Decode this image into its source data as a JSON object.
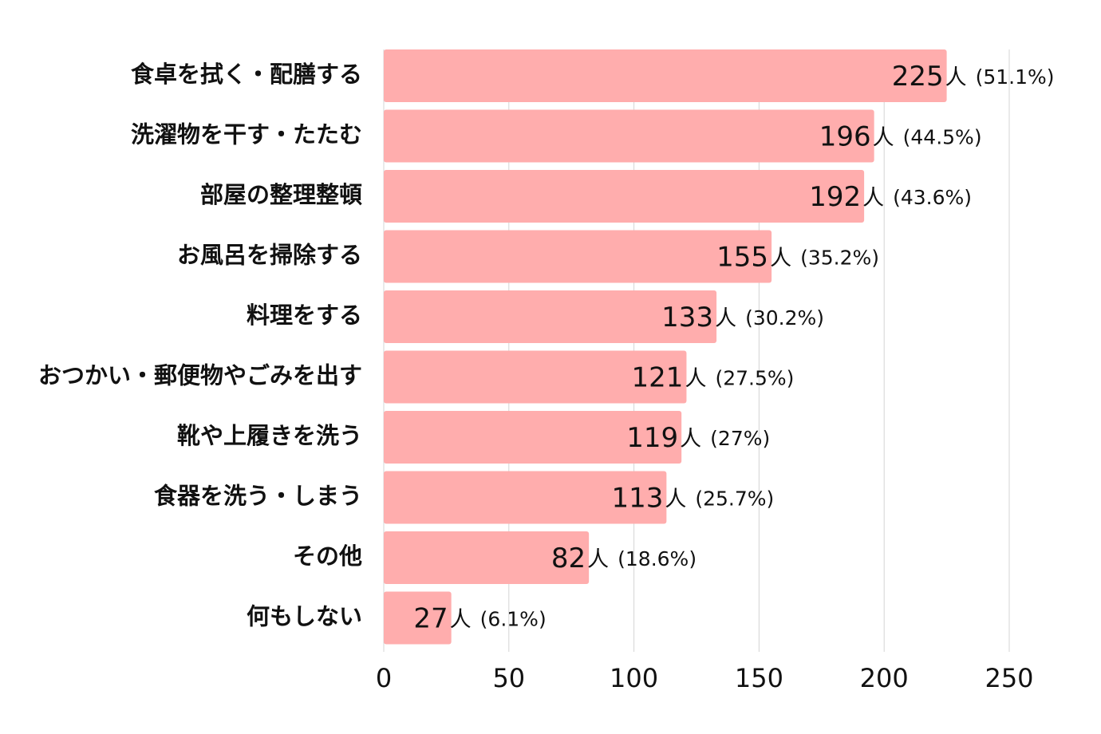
{
  "chart_data": {
    "type": "bar",
    "orientation": "horizontal",
    "categories": [
      "食卓を拭く・配膳する",
      "洗濯物を干す・たたむ",
      "部屋の整理整頓",
      "お風呂を掃除する",
      "料理をする",
      "おつかい・郵便物やごみを出す",
      "靴や上履きを洗う",
      "食器を洗う・しまう",
      "その他",
      "何もしない"
    ],
    "values": [
      225,
      196,
      192,
      155,
      133,
      121,
      119,
      113,
      82,
      27
    ],
    "percent_labels": [
      "(51.1%)",
      "(44.5%)",
      "(43.6%)",
      "(35.2%)",
      "(30.2%)",
      "(27.5%)",
      "(27%)",
      "(25.7%)",
      "(18.6%)",
      "(6.1%)"
    ],
    "unit": "人",
    "xlim": [
      0,
      250
    ],
    "xticks": [
      0,
      50,
      100,
      150,
      200,
      250
    ],
    "title": "",
    "xlabel": "",
    "ylabel": "",
    "grid": "vertical",
    "colors": {
      "bar": "#ffadad",
      "grid": "#d4d4d4",
      "text": "#111111"
    }
  }
}
